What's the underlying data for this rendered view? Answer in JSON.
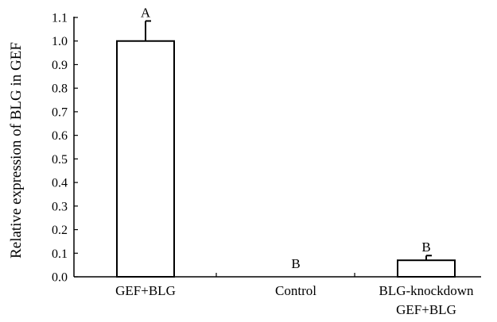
{
  "chart_data": {
    "type": "bar",
    "title": "",
    "xlabel": "",
    "ylabel": "Relative expression of BLG in GEF",
    "ylim": [
      0,
      1.1
    ],
    "yticks": [
      "0.0",
      "0.1",
      "0.2",
      "0.3",
      "0.4",
      "0.5",
      "0.6",
      "0.7",
      "0.8",
      "0.9",
      "1.0",
      "1.1"
    ],
    "categories": [
      [
        "GEF+BLG"
      ],
      [
        "Control"
      ],
      [
        "BLG-knockdown",
        "GEF+BLG"
      ]
    ],
    "values": [
      1.0,
      0.0,
      0.07
    ],
    "errors": [
      0.085,
      0.0,
      0.02
    ],
    "significance_letters": [
      "A",
      "B",
      "B"
    ],
    "grid": false,
    "bar_fill": "#ffffff",
    "bar_stroke": "#000000"
  }
}
